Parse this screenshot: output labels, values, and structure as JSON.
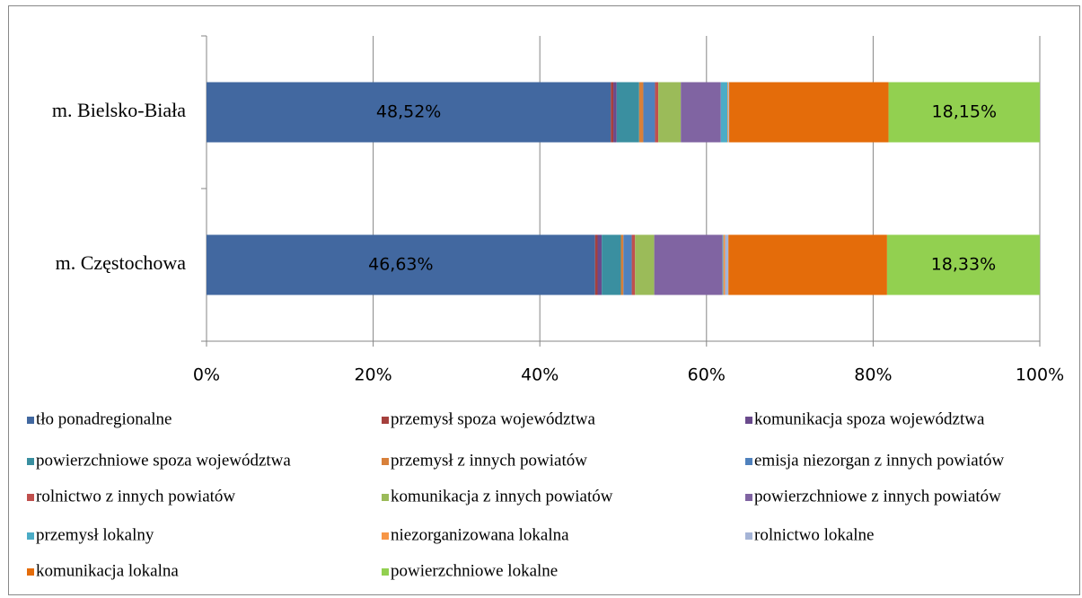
{
  "chart_data": {
    "type": "bar",
    "orientation": "horizontal",
    "stacked": true,
    "categories": [
      "m. Bielsko-Biała",
      "m. Częstochowa"
    ],
    "series": [
      {
        "name": "tło ponadregionalne",
        "color": "#4268a0",
        "values": [
          48.52,
          46.63
        ],
        "value_labels": [
          "48,52%",
          "46,63%"
        ]
      },
      {
        "name": "przemysł spoza województwa",
        "color": "#a5403d",
        "values": [
          0.3,
          0.3
        ]
      },
      {
        "name": "komunikacja spoza województwa",
        "color": "#6a4a8c",
        "values": [
          0.4,
          0.5
        ]
      },
      {
        "name": "powierzchniowe spoza województwa",
        "color": "#3a8fa0",
        "values": [
          2.7,
          2.3
        ]
      },
      {
        "name": "przemysł z innych powiatów",
        "color": "#d8803a",
        "values": [
          0.5,
          0.3
        ]
      },
      {
        "name": "emisja niezorgan z innych powiatów",
        "color": "#4f81bd",
        "values": [
          1.4,
          1.0
        ]
      },
      {
        "name": "rolnictwo z innych powiatów",
        "color": "#c0504d",
        "values": [
          0.4,
          0.4
        ]
      },
      {
        "name": "komunikacja z innych powiatów",
        "color": "#9bbb59",
        "values": [
          2.7,
          2.3
        ]
      },
      {
        "name": "powierzchniowe z innych powiatów",
        "color": "#8064a2",
        "values": [
          4.8,
          8.2
        ]
      },
      {
        "name": "przemysł lokalny",
        "color": "#4bacc6",
        "values": [
          0.8,
          0.1
        ]
      },
      {
        "name": "niezorganizowana lokalna",
        "color": "#f79646",
        "values": [
          0.1,
          0.2
        ]
      },
      {
        "name": "rolnictwo lokalne",
        "color": "#a5b4d6",
        "values": [
          0.1,
          0.4
        ]
      },
      {
        "name": "komunikacja lokalna",
        "color": "#e46c0a",
        "values": [
          19.13,
          19.04
        ]
      },
      {
        "name": "powierzchniowe lokalne",
        "color": "#92d050",
        "values": [
          18.15,
          18.33
        ],
        "value_labels": [
          "18,15%",
          "18,33%"
        ]
      }
    ],
    "xlim": [
      0,
      100
    ],
    "xticks": [
      {
        "value": 0,
        "label": "0%"
      },
      {
        "value": 20,
        "label": "20%"
      },
      {
        "value": 40,
        "label": "40%"
      },
      {
        "value": 60,
        "label": "60%"
      },
      {
        "value": 80,
        "label": "80%"
      },
      {
        "value": 100,
        "label": "100%"
      }
    ],
    "grid": true,
    "legend": "bottom"
  }
}
